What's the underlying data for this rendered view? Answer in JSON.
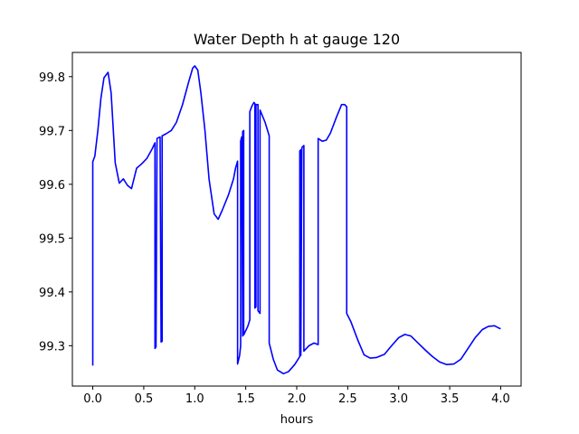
{
  "chart_data": {
    "type": "line",
    "title": "Water Depth h at gauge 120",
    "xlabel": "hours",
    "ylabel": "",
    "xlim": [
      -0.2,
      4.2
    ],
    "ylim": [
      99.225,
      99.845
    ],
    "xticks": [
      0.0,
      0.5,
      1.0,
      1.5,
      2.0,
      2.5,
      3.0,
      3.5,
      4.0
    ],
    "xtick_labels": [
      "0.0",
      "0.5",
      "1.0",
      "1.5",
      "2.0",
      "2.5",
      "3.0",
      "3.5",
      "4.0"
    ],
    "yticks": [
      99.3,
      99.4,
      99.5,
      99.6,
      99.7,
      99.8
    ],
    "ytick_labels": [
      "99.3",
      "99.4",
      "99.5",
      "99.6",
      "99.7",
      "99.8"
    ],
    "grid": false,
    "legend": "none",
    "series": [
      {
        "color": "#0000ff",
        "points": [
          [
            0.0,
            99.263
          ],
          [
            0.0,
            99.642
          ],
          [
            0.02,
            99.652
          ],
          [
            0.05,
            99.7
          ],
          [
            0.08,
            99.76
          ],
          [
            0.11,
            99.798
          ],
          [
            0.15,
            99.808
          ],
          [
            0.18,
            99.77
          ],
          [
            0.22,
            99.64
          ],
          [
            0.26,
            99.602
          ],
          [
            0.3,
            99.61
          ],
          [
            0.34,
            99.598
          ],
          [
            0.38,
            99.592
          ],
          [
            0.43,
            99.63
          ],
          [
            0.48,
            99.638
          ],
          [
            0.53,
            99.648
          ],
          [
            0.58,
            99.665
          ],
          [
            0.61,
            99.677
          ],
          [
            0.61,
            99.295
          ],
          [
            0.62,
            99.298
          ],
          [
            0.63,
            99.685
          ],
          [
            0.66,
            99.688
          ],
          [
            0.67,
            99.307
          ],
          [
            0.68,
            99.308
          ],
          [
            0.68,
            99.69
          ],
          [
            0.72,
            99.694
          ],
          [
            0.77,
            99.7
          ],
          [
            0.82,
            99.715
          ],
          [
            0.88,
            99.748
          ],
          [
            0.94,
            99.79
          ],
          [
            0.98,
            99.816
          ],
          [
            1.0,
            99.82
          ],
          [
            1.03,
            99.812
          ],
          [
            1.06,
            99.77
          ],
          [
            1.1,
            99.7
          ],
          [
            1.14,
            99.61
          ],
          [
            1.19,
            99.545
          ],
          [
            1.23,
            99.535
          ],
          [
            1.27,
            99.552
          ],
          [
            1.33,
            99.58
          ],
          [
            1.38,
            99.61
          ],
          [
            1.4,
            99.63
          ],
          [
            1.42,
            99.643
          ],
          [
            1.42,
            99.266
          ],
          [
            1.44,
            99.282
          ],
          [
            1.45,
            99.3
          ],
          [
            1.45,
            99.68
          ],
          [
            1.46,
            99.688
          ],
          [
            1.47,
            99.318
          ],
          [
            1.47,
            99.698
          ],
          [
            1.48,
            99.7
          ],
          [
            1.48,
            99.32
          ],
          [
            1.52,
            99.336
          ],
          [
            1.54,
            99.348
          ],
          [
            1.54,
            99.735
          ],
          [
            1.56,
            99.745
          ],
          [
            1.58,
            99.752
          ],
          [
            1.59,
            99.75
          ],
          [
            1.59,
            99.37
          ],
          [
            1.6,
            99.372
          ],
          [
            1.6,
            99.748
          ],
          [
            1.62,
            99.748
          ],
          [
            1.62,
            99.365
          ],
          [
            1.64,
            99.36
          ],
          [
            1.64,
            99.738
          ],
          [
            1.69,
            99.715
          ],
          [
            1.73,
            99.69
          ],
          [
            1.73,
            99.305
          ],
          [
            1.77,
            99.275
          ],
          [
            1.81,
            99.255
          ],
          [
            1.87,
            99.248
          ],
          [
            1.92,
            99.252
          ],
          [
            1.98,
            99.265
          ],
          [
            2.03,
            99.28
          ],
          [
            2.03,
            99.662
          ],
          [
            2.04,
            99.664
          ],
          [
            2.04,
            99.282
          ],
          [
            2.05,
            99.668
          ],
          [
            2.07,
            99.672
          ],
          [
            2.07,
            99.29
          ],
          [
            2.12,
            99.3
          ],
          [
            2.17,
            99.305
          ],
          [
            2.21,
            99.302
          ],
          [
            2.21,
            99.685
          ],
          [
            2.25,
            99.68
          ],
          [
            2.29,
            99.682
          ],
          [
            2.33,
            99.695
          ],
          [
            2.39,
            99.725
          ],
          [
            2.44,
            99.748
          ],
          [
            2.47,
            99.748
          ],
          [
            2.49,
            99.744
          ],
          [
            2.49,
            99.36
          ],
          [
            2.53,
            99.345
          ],
          [
            2.6,
            99.31
          ],
          [
            2.66,
            99.283
          ],
          [
            2.72,
            99.277
          ],
          [
            2.78,
            99.278
          ],
          [
            2.86,
            99.284
          ],
          [
            2.93,
            99.3
          ],
          [
            3.0,
            99.315
          ],
          [
            3.06,
            99.321
          ],
          [
            3.12,
            99.318
          ],
          [
            3.19,
            99.305
          ],
          [
            3.26,
            99.292
          ],
          [
            3.33,
            99.28
          ],
          [
            3.4,
            99.27
          ],
          [
            3.47,
            99.265
          ],
          [
            3.54,
            99.266
          ],
          [
            3.61,
            99.275
          ],
          [
            3.68,
            99.295
          ],
          [
            3.75,
            99.315
          ],
          [
            3.82,
            99.33
          ],
          [
            3.88,
            99.336
          ],
          [
            3.94,
            99.337
          ],
          [
            3.99,
            99.332
          ],
          [
            4.0,
            99.332
          ]
        ]
      }
    ]
  }
}
